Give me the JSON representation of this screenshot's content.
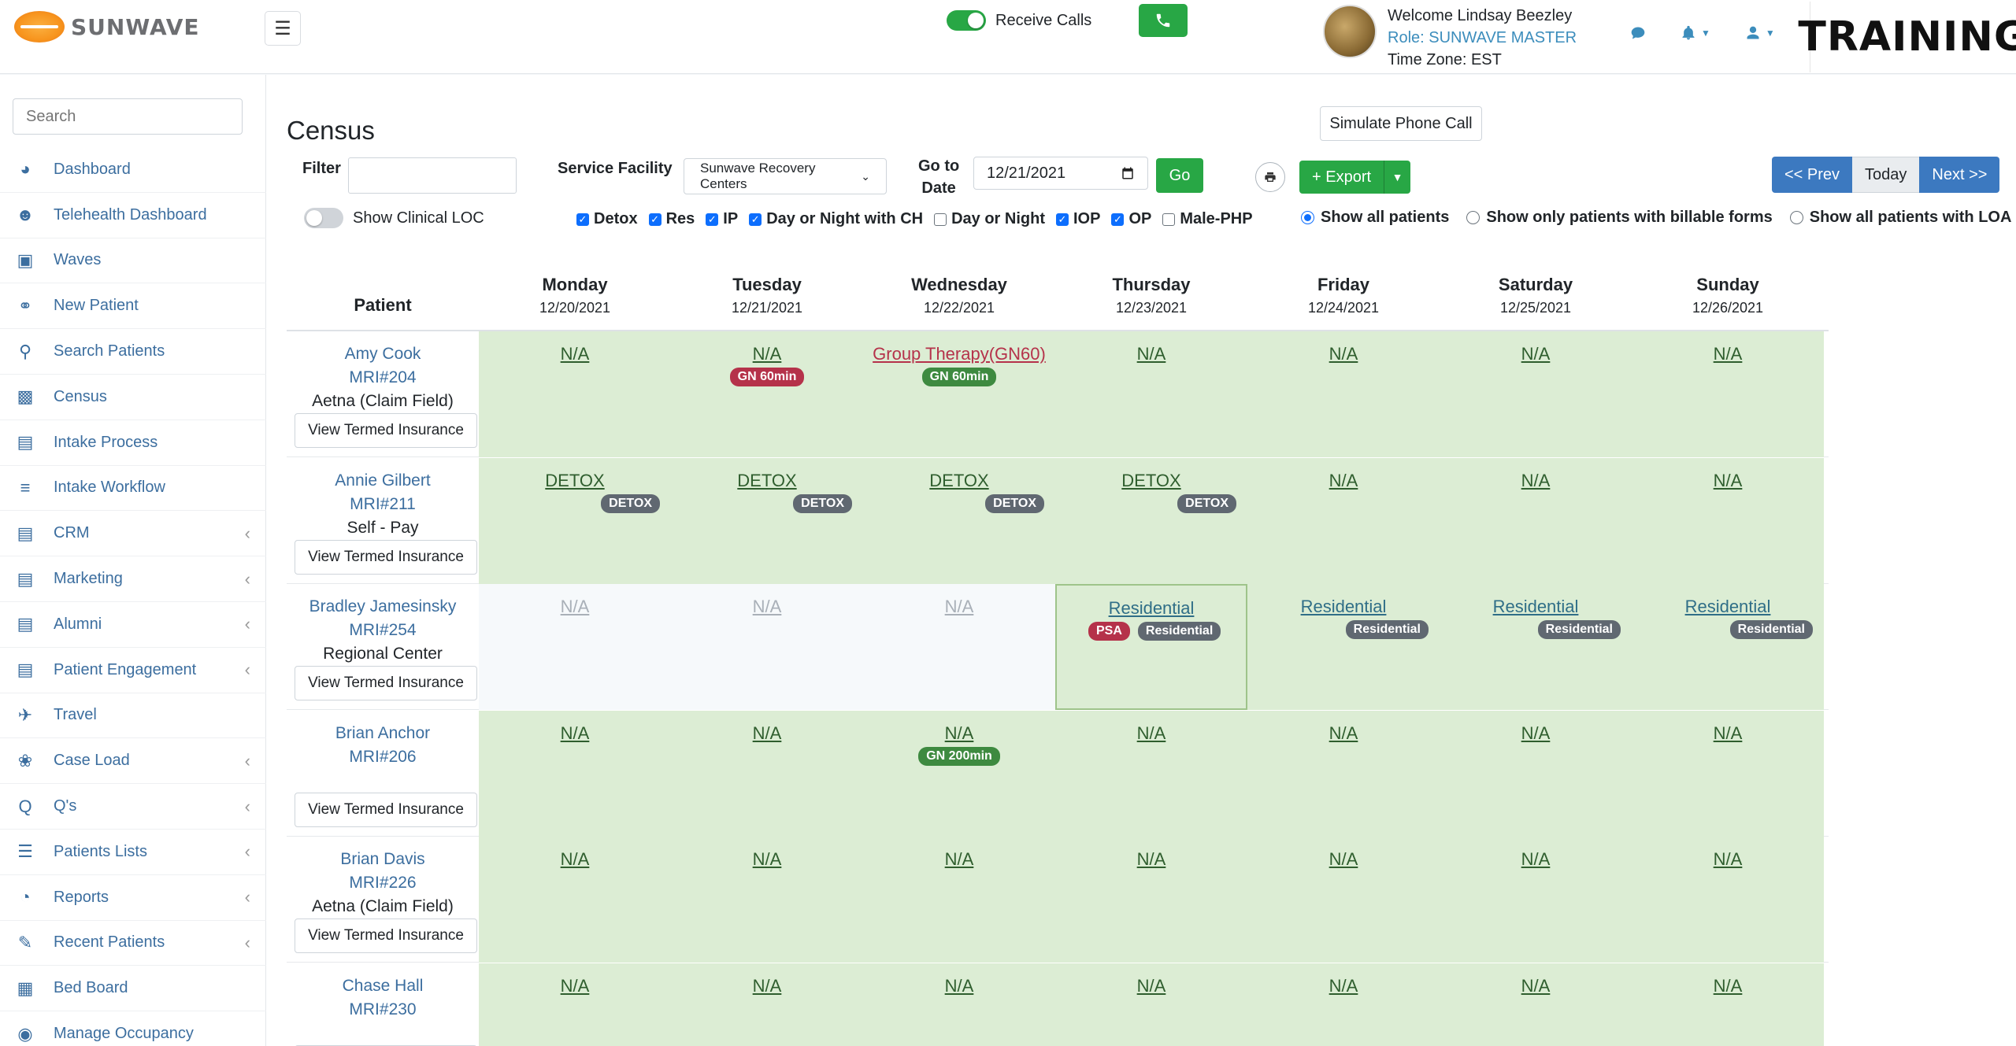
{
  "brand": {
    "name": "SUNWAVE",
    "training": "TRAINING"
  },
  "header": {
    "receive_calls": "Receive Calls",
    "welcome": "Welcome Lindsay Beezley",
    "role": "Role: SUNWAVE MASTER",
    "timezone": "Time Zone: EST"
  },
  "sidebar": {
    "search_placeholder": "Search",
    "items": [
      {
        "label": "Dashboard",
        "icon": "dashboard-icon",
        "sub": false
      },
      {
        "label": "Telehealth Dashboard",
        "icon": "users-icon",
        "sub": false
      },
      {
        "label": "Waves",
        "icon": "chat-icon",
        "sub": false
      },
      {
        "label": "New Patient",
        "icon": "stethoscope-icon",
        "sub": false
      },
      {
        "label": "Search Patients",
        "icon": "search-icon",
        "sub": false
      },
      {
        "label": "Census",
        "icon": "money-icon",
        "sub": false
      },
      {
        "label": "Intake Process",
        "icon": "contact-icon",
        "sub": false
      },
      {
        "label": "Intake Workflow",
        "icon": "workflow-icon",
        "sub": false
      },
      {
        "label": "CRM",
        "icon": "contact-icon",
        "sub": true
      },
      {
        "label": "Marketing",
        "icon": "contact-icon",
        "sub": true
      },
      {
        "label": "Alumni",
        "icon": "id-card-icon",
        "sub": true
      },
      {
        "label": "Patient Engagement",
        "icon": "id-card-icon",
        "sub": true
      },
      {
        "label": "Travel",
        "icon": "plane-icon",
        "sub": false
      },
      {
        "label": "Case Load",
        "icon": "leaf-icon",
        "sub": true
      },
      {
        "label": "Q's",
        "icon": "q-icon",
        "sub": true
      },
      {
        "label": "Patients Lists",
        "icon": "list-icon",
        "sub": true
      },
      {
        "label": "Reports",
        "icon": "pie-chart-icon",
        "sub": true
      },
      {
        "label": "Recent Patients",
        "icon": "edit-icon",
        "sub": true
      },
      {
        "label": "Bed Board",
        "icon": "building-icon",
        "sub": false
      },
      {
        "label": "Manage Occupancy",
        "icon": "circle-icon",
        "sub": false
      }
    ]
  },
  "main": {
    "title": "Census",
    "simulate": "Simulate Phone Call",
    "filter_label": "Filter",
    "facility_label": "Service Facility",
    "facility_value": "Sunwave Recovery Centers",
    "goto_label_1": "Go to",
    "goto_label_2": "Date",
    "date_value": "12/21/2021",
    "go": "Go",
    "export": "+ Export",
    "prev": "<< Prev",
    "today": "Today",
    "next": "Next >>",
    "show_loc": "Show Clinical LOC",
    "checks": [
      {
        "label": "Detox",
        "checked": true
      },
      {
        "label": "Res",
        "checked": true
      },
      {
        "label": "IP",
        "checked": true
      },
      {
        "label": "Day or Night with CH",
        "checked": true
      },
      {
        "label": "Day or Night",
        "checked": false
      },
      {
        "label": "IOP",
        "checked": true
      },
      {
        "label": "OP",
        "checked": true
      },
      {
        "label": "Male-PHP",
        "checked": false
      }
    ],
    "radios": [
      {
        "label": "Show all patients",
        "selected": true
      },
      {
        "label": "Show only patients with billable forms",
        "selected": false
      },
      {
        "label": "Show all patients with LOA",
        "selected": false
      }
    ]
  },
  "grid": {
    "patient_header": "Patient",
    "days": [
      {
        "day": "Monday",
        "date": "12/20/2021"
      },
      {
        "day": "Tuesday",
        "date": "12/21/2021"
      },
      {
        "day": "Wednesday",
        "date": "12/22/2021"
      },
      {
        "day": "Thursday",
        "date": "12/23/2021"
      },
      {
        "day": "Friday",
        "date": "12/24/2021"
      },
      {
        "day": "Saturday",
        "date": "12/25/2021"
      },
      {
        "day": "Sunday",
        "date": "12/26/2021"
      }
    ],
    "termed_label": "View Termed Insurance",
    "rows": [
      {
        "name": "Amy Cook",
        "mri": "MRI#204",
        "ins": "Aetna (Claim Field)",
        "cells": [
          {
            "text": "N/A",
            "style": "green",
            "link": "",
            "badges": []
          },
          {
            "text": "N/A",
            "style": "green",
            "link": "",
            "badges": [
              {
                "t": "GN 60min",
                "c": "red"
              }
            ]
          },
          {
            "text": "Group Therapy(GN60)",
            "style": "green",
            "link": "red",
            "badges": [
              {
                "t": "GN 60min",
                "c": "green"
              }
            ]
          },
          {
            "text": "N/A",
            "style": "green",
            "link": "",
            "badges": []
          },
          {
            "text": "N/A",
            "style": "green",
            "link": "",
            "badges": []
          },
          {
            "text": "N/A",
            "style": "green",
            "link": "",
            "badges": []
          },
          {
            "text": "N/A",
            "style": "green",
            "link": "",
            "badges": []
          }
        ]
      },
      {
        "name": "Annie Gilbert",
        "mri": "MRI#211",
        "ins": "Self - Pay",
        "cells": [
          {
            "text": "DETOX",
            "style": "green",
            "link": "",
            "badges": [
              {
                "t": "DETOX",
                "c": "gray"
              }
            ],
            "right": true
          },
          {
            "text": "DETOX",
            "style": "green",
            "link": "",
            "badges": [
              {
                "t": "DETOX",
                "c": "gray"
              }
            ],
            "right": true
          },
          {
            "text": "DETOX",
            "style": "green",
            "link": "",
            "badges": [
              {
                "t": "DETOX",
                "c": "gray"
              }
            ],
            "right": true
          },
          {
            "text": "DETOX",
            "style": "green",
            "link": "",
            "badges": [
              {
                "t": "DETOX",
                "c": "gray"
              }
            ],
            "right": true
          },
          {
            "text": "N/A",
            "style": "green",
            "link": "",
            "badges": []
          },
          {
            "text": "N/A",
            "style": "green",
            "link": "",
            "badges": []
          },
          {
            "text": "N/A",
            "style": "green",
            "link": "",
            "badges": []
          }
        ]
      },
      {
        "name": "Bradley Jamesinsky",
        "mri": "MRI#254",
        "ins": "Regional Center",
        "cells": [
          {
            "text": "N/A",
            "style": "pale",
            "link": "muted",
            "badges": []
          },
          {
            "text": "N/A",
            "style": "pale",
            "link": "muted",
            "badges": []
          },
          {
            "text": "N/A",
            "style": "pale",
            "link": "muted",
            "badges": []
          },
          {
            "text": "Residential",
            "style": "green hl",
            "link": "blue",
            "badges": [
              {
                "t": "PSA",
                "c": "red"
              },
              {
                "t": "Residential",
                "c": "gray"
              }
            ],
            "spread": true
          },
          {
            "text": "Residential",
            "style": "green",
            "link": "blue",
            "badges": [
              {
                "t": "Residential",
                "c": "gray"
              }
            ],
            "right": true
          },
          {
            "text": "Residential",
            "style": "green",
            "link": "blue",
            "badges": [
              {
                "t": "Residential",
                "c": "gray"
              }
            ],
            "right": true
          },
          {
            "text": "Residential",
            "style": "green",
            "link": "blue",
            "badges": [
              {
                "t": "Residential",
                "c": "gray"
              }
            ],
            "right": true
          }
        ]
      },
      {
        "name": "Brian Anchor",
        "mri": "MRI#206",
        "ins": "",
        "cells": [
          {
            "text": "N/A",
            "style": "green",
            "link": "",
            "badges": []
          },
          {
            "text": "N/A",
            "style": "green",
            "link": "",
            "badges": []
          },
          {
            "text": "N/A",
            "style": "green",
            "link": "",
            "badges": [
              {
                "t": "GN 200min",
                "c": "green"
              }
            ]
          },
          {
            "text": "N/A",
            "style": "green",
            "link": "",
            "badges": []
          },
          {
            "text": "N/A",
            "style": "green",
            "link": "",
            "badges": []
          },
          {
            "text": "N/A",
            "style": "green",
            "link": "",
            "badges": []
          },
          {
            "text": "N/A",
            "style": "green",
            "link": "",
            "badges": []
          }
        ]
      },
      {
        "name": "Brian Davis",
        "mri": "MRI#226",
        "ins": "Aetna (Claim Field)",
        "cells": [
          {
            "text": "N/A",
            "style": "green",
            "link": "",
            "badges": []
          },
          {
            "text": "N/A",
            "style": "green",
            "link": "",
            "badges": []
          },
          {
            "text": "N/A",
            "style": "green",
            "link": "",
            "badges": []
          },
          {
            "text": "N/A",
            "style": "green",
            "link": "",
            "badges": []
          },
          {
            "text": "N/A",
            "style": "green",
            "link": "",
            "badges": []
          },
          {
            "text": "N/A",
            "style": "green",
            "link": "",
            "badges": []
          },
          {
            "text": "N/A",
            "style": "green",
            "link": "",
            "badges": []
          }
        ]
      },
      {
        "name": "Chase Hall",
        "mri": "MRI#230",
        "ins": "",
        "cells": [
          {
            "text": "N/A",
            "style": "green",
            "link": "",
            "badges": []
          },
          {
            "text": "N/A",
            "style": "green",
            "link": "",
            "badges": []
          },
          {
            "text": "N/A",
            "style": "green",
            "link": "",
            "badges": []
          },
          {
            "text": "N/A",
            "style": "green",
            "link": "",
            "badges": []
          },
          {
            "text": "N/A",
            "style": "green",
            "link": "",
            "badges": []
          },
          {
            "text": "N/A",
            "style": "green",
            "link": "",
            "badges": []
          },
          {
            "text": "N/A",
            "style": "green",
            "link": "",
            "badges": []
          }
        ]
      }
    ]
  }
}
